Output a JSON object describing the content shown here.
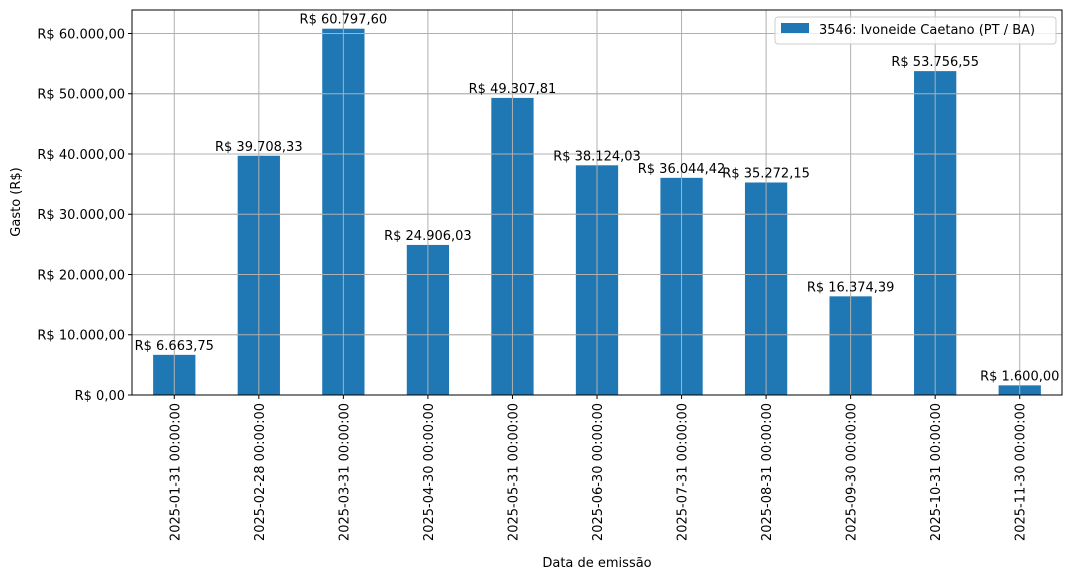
{
  "chart_data": {
    "type": "bar",
    "title": "",
    "xlabel": "Data de emissão",
    "ylabel": "Gasto (R$)",
    "ylim": [
      0,
      63900
    ],
    "grid": true,
    "legend_position": "upper right",
    "categories": [
      "2025-01-31 00:00:00",
      "2025-02-28 00:00:00",
      "2025-03-31 00:00:00",
      "2025-04-30 00:00:00",
      "2025-05-31 00:00:00",
      "2025-06-30 00:00:00",
      "2025-07-31 00:00:00",
      "2025-08-31 00:00:00",
      "2025-09-30 00:00:00",
      "2025-10-31 00:00:00",
      "2025-11-30 00:00:00"
    ],
    "series": [
      {
        "name": "3546: Ivoneide Caetano (PT / BA)",
        "color": "#1f77b4",
        "values": [
          6663.75,
          39708.33,
          60797.6,
          24906.03,
          49307.81,
          38124.03,
          36044.42,
          35272.15,
          16374.39,
          53756.55,
          1600.0
        ],
        "labels": [
          "R$ 6.663,75",
          "R$ 39.708,33",
          "R$ 60.797,60",
          "R$ 24.906,03",
          "R$ 49.307,81",
          "R$ 38.124,03",
          "R$ 36.044,42",
          "R$ 35.272,15",
          "R$ 16.374,39",
          "R$ 53.756,55",
          "R$ 1.600,00"
        ]
      }
    ],
    "yticks": [
      0,
      10000,
      20000,
      30000,
      40000,
      50000,
      60000
    ],
    "ytick_labels": [
      "R$ 0,00",
      "R$ 10.000,00",
      "R$ 20.000,00",
      "R$ 30.000,00",
      "R$ 40.000,00",
      "R$ 50.000,00",
      "R$ 60.000,00"
    ]
  }
}
